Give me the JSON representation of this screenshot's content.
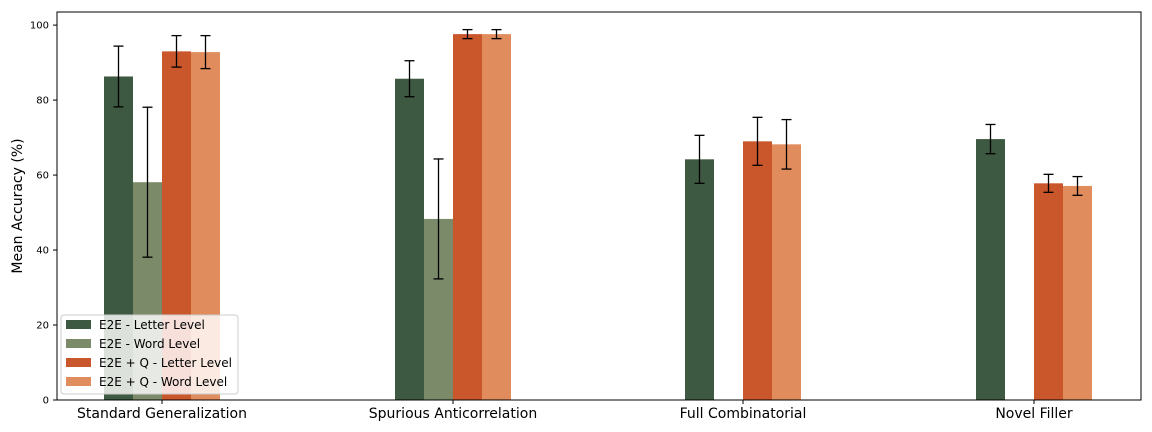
{
  "chart_data": {
    "type": "bar",
    "title": "",
    "xlabel": "",
    "ylabel": "Mean Accuracy (%)",
    "ylim": [
      0,
      103.5
    ],
    "yticks": [
      0,
      20,
      40,
      60,
      80,
      100
    ],
    "grid": false,
    "legend_position": "bottom-left",
    "categories": [
      "Standard Generalization",
      "Spurious Anticorrelation",
      "Full Combinatorial",
      "Novel Filler"
    ],
    "series": [
      {
        "name": "E2E - Letter Level",
        "color": "#3d5941",
        "values": [
          86.3,
          85.7,
          64.2,
          69.6
        ],
        "errors": [
          8.1,
          4.8,
          6.4,
          3.9
        ]
      },
      {
        "name": "E2E - Word Level",
        "color": "#7b8b69",
        "values": [
          58.1,
          48.3,
          0,
          0
        ],
        "errors": [
          20.0,
          16.0,
          0,
          0
        ]
      },
      {
        "name": "E2E + Q - Letter Level",
        "color": "#ca562c",
        "values": [
          93.0,
          97.6,
          69.0,
          57.8
        ],
        "errors": [
          4.2,
          1.2,
          6.4,
          2.4
        ]
      },
      {
        "name": "E2E + Q - Word Level",
        "color": "#e08c5c",
        "values": [
          92.8,
          97.6,
          68.2,
          57.1
        ],
        "errors": [
          4.4,
          1.2,
          6.6,
          2.5
        ]
      }
    ]
  }
}
